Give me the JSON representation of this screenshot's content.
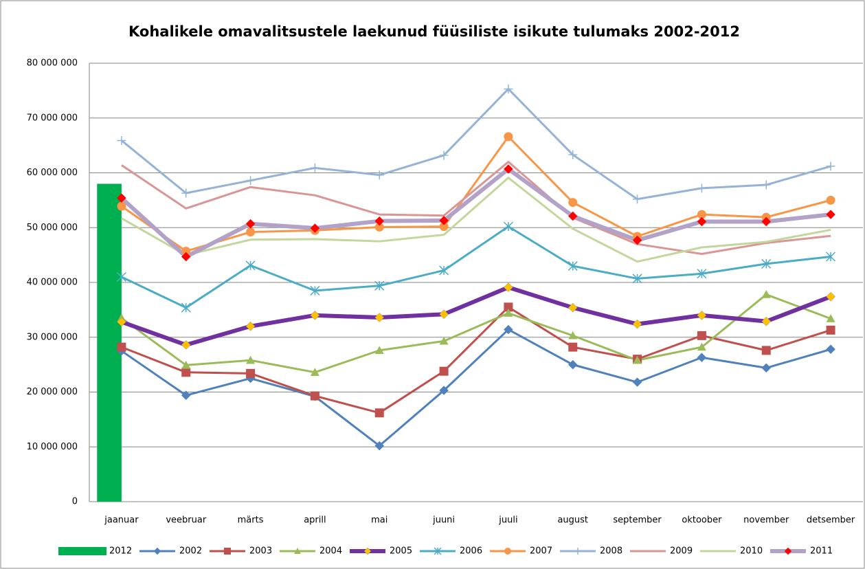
{
  "chart_data": {
    "type": "line",
    "title": "Kohalikele omavalitsustele laekunud füüsiliste isikute tulumaks 2002-2012",
    "categories": [
      "jaanuar",
      "veebruar",
      "märts",
      "aprill",
      "mai",
      "juuni",
      "juuli",
      "august",
      "september",
      "oktoober",
      "november",
      "detsember"
    ],
    "ylim": [
      0,
      80000000
    ],
    "yticks": [
      0,
      {
        "value": 10000000,
        "label": "10 000 000"
      },
      {
        "value": 20000000,
        "label": "20 000 000"
      },
      {
        "value": 30000000,
        "label": "30 000 000"
      },
      {
        "value": 40000000,
        "label": "40 000 000"
      },
      {
        "value": 50000000,
        "label": "50 000 000"
      },
      {
        "value": 60000000,
        "label": "60 000 000"
      },
      {
        "value": 70000000,
        "label": "70 000 000"
      },
      {
        "value": 80000000,
        "label": "80 000 000"
      }
    ],
    "grid": true,
    "legend": "bottom",
    "series": [
      {
        "name": "2012",
        "type": "bar",
        "color": "#00b050",
        "values": [
          58000000,
          null,
          null,
          null,
          null,
          null,
          null,
          null,
          null,
          null,
          null,
          null
        ]
      },
      {
        "name": "2002",
        "color": "#4f81bd",
        "marker": "diamond",
        "line_width": 3,
        "values": [
          27500000,
          19400000,
          22500000,
          19200000,
          10200000,
          20300000,
          31400000,
          25000000,
          21800000,
          26300000,
          24400000,
          27800000
        ]
      },
      {
        "name": "2003",
        "color": "#c0504d",
        "marker": "square",
        "line_width": 3,
        "values": [
          28200000,
          23600000,
          23400000,
          19300000,
          16200000,
          23800000,
          35500000,
          28200000,
          26000000,
          30300000,
          27600000,
          31300000
        ]
      },
      {
        "name": "2004",
        "color": "#9bbb59",
        "marker": "triangle",
        "line_width": 3,
        "values": [
          33500000,
          24900000,
          25800000,
          23600000,
          27600000,
          29300000,
          34400000,
          30300000,
          25800000,
          28200000,
          37800000,
          33400000
        ]
      },
      {
        "name": "2005",
        "color": "#7030a0",
        "marker": "diamond",
        "marker_color": "#ffc000",
        "line_width": 6,
        "values": [
          32800000,
          28600000,
          32000000,
          34000000,
          33600000,
          34200000,
          39100000,
          35400000,
          32400000,
          34000000,
          32900000,
          37400000
        ]
      },
      {
        "name": "2006",
        "color": "#4bacc6",
        "marker": "star",
        "line_width": 3,
        "values": [
          41000000,
          35400000,
          43100000,
          38500000,
          39400000,
          42200000,
          50200000,
          43000000,
          40700000,
          41600000,
          43400000,
          44700000
        ]
      },
      {
        "name": "2007",
        "color": "#f79646",
        "marker": "circle",
        "line_width": 3,
        "values": [
          53900000,
          45700000,
          49200000,
          49500000,
          50100000,
          50200000,
          66600000,
          54600000,
          48400000,
          52400000,
          51900000,
          55000000
        ]
      },
      {
        "name": "2008",
        "color": "#95b3d7",
        "marker": "plus",
        "line_width": 3,
        "values": [
          65900000,
          56300000,
          58600000,
          60900000,
          59600000,
          63200000,
          75300000,
          63300000,
          55200000,
          57200000,
          57800000,
          61200000
        ]
      },
      {
        "name": "2009",
        "color": "#d99694",
        "line_width": 3,
        "values": [
          61400000,
          53500000,
          57400000,
          55900000,
          52400000,
          52200000,
          62000000,
          51800000,
          47000000,
          45200000,
          47200000,
          48500000
        ]
      },
      {
        "name": "2010",
        "color": "#c3d69b",
        "line_width": 3,
        "values": [
          51700000,
          45000000,
          47800000,
          47900000,
          47500000,
          48700000,
          59100000,
          49800000,
          43800000,
          46400000,
          47400000,
          49600000
        ]
      },
      {
        "name": "2011",
        "color": "#b3a2c7",
        "marker": "diamond",
        "marker_color": "#ff0000",
        "line_width": 6,
        "values": [
          55400000,
          44700000,
          50700000,
          49900000,
          51200000,
          51300000,
          60700000,
          52100000,
          47700000,
          51100000,
          51100000,
          52400000
        ]
      }
    ]
  }
}
